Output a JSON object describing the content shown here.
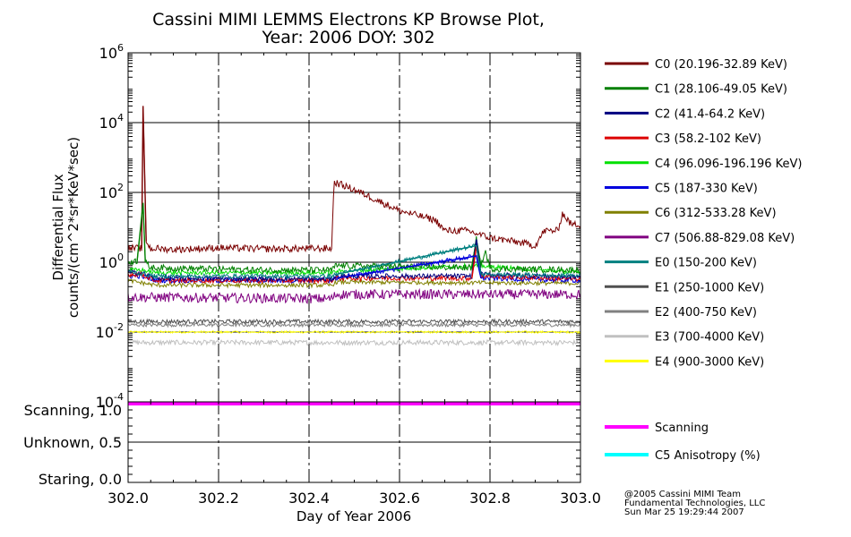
{
  "title_line1": "Cassini MIMI LEMMS Electrons KP Browse Plot,",
  "title_line2": "Year: 2006 DOY: 302",
  "credit": {
    "line1": "@2005 Cassini MIMI Team",
    "line2": "Fundamental Technologies, LLC",
    "line3": "Sun Mar 25 19:29:44 2007"
  },
  "chart_data": [
    {
      "type": "line",
      "panel": "flux",
      "title": "Cassini MIMI LEMMS Electrons KP Browse Plot, Year: 2006 DOY: 302",
      "ylabel_line1": "Differential Flux",
      "ylabel_line2": "counts/(cm^2*sr*KeV*sec)",
      "xlabel": "Day of Year 2006",
      "yscale": "log",
      "ylim": [
        0.0001,
        1000000
      ],
      "xlim": [
        302.0,
        303.0
      ],
      "y_ticks": [
        {
          "base": "10",
          "exp": "6"
        },
        {
          "base": "10",
          "exp": "4"
        },
        {
          "base": "10",
          "exp": "2"
        },
        {
          "base": "10",
          "exp": "0"
        },
        {
          "base": "10",
          "exp": "-2"
        },
        {
          "base": "10",
          "exp": "-4"
        }
      ],
      "x_ticks": [
        "302.0",
        "302.2",
        "302.4",
        "302.6",
        "302.8",
        "303.0"
      ],
      "x_tick_values": [
        302.0,
        302.2,
        302.4,
        302.6,
        302.8,
        303.0
      ],
      "dashed_verticals": [
        302.2,
        302.4,
        302.6,
        302.8
      ],
      "series": [
        {
          "name": "C0 (20.196-32.89 KeV)",
          "color": "#7a0000",
          "points": [
            [
              302.0,
              2.5
            ],
            [
              302.03,
              2.5
            ],
            [
              302.033,
              30000
            ],
            [
              302.04,
              4.0
            ],
            [
              302.05,
              2.4
            ],
            [
              302.06,
              2.5
            ],
            [
              302.1,
              2.3
            ],
            [
              302.2,
              2.6
            ],
            [
              302.3,
              2.4
            ],
            [
              302.45,
              2.5
            ],
            [
              302.455,
              200
            ],
            [
              302.5,
              120
            ],
            [
              302.53,
              80
            ],
            [
              302.6,
              30
            ],
            [
              302.68,
              16
            ],
            [
              302.7,
              8
            ],
            [
              302.75,
              8
            ],
            [
              302.8,
              5
            ],
            [
              302.85,
              4
            ],
            [
              302.9,
              3.0
            ],
            [
              302.92,
              8
            ],
            [
              302.95,
              8
            ],
            [
              302.96,
              25
            ],
            [
              302.98,
              12
            ],
            [
              303.0,
              12
            ]
          ],
          "noise": 0.1
        },
        {
          "name": "C1 (28.106-49.05 KeV)",
          "color": "#008000",
          "points": [
            [
              302.0,
              1.0
            ],
            [
              302.02,
              1.1
            ],
            [
              302.033,
              50
            ],
            [
              302.038,
              1.0
            ],
            [
              302.05,
              0.7
            ],
            [
              302.3,
              0.6
            ],
            [
              302.45,
              0.6
            ],
            [
              302.46,
              0.8
            ],
            [
              302.6,
              0.75
            ],
            [
              302.76,
              0.7
            ],
            [
              302.77,
              4.5
            ],
            [
              302.78,
              0.8
            ],
            [
              302.79,
              2.0
            ],
            [
              302.8,
              0.65
            ],
            [
              303.0,
              0.6
            ]
          ],
          "noise": 0.09
        },
        {
          "name": "C2 (41.4-64.2 KeV)",
          "color": "#000080",
          "points": [
            [
              302.0,
              0.5
            ],
            [
              302.03,
              0.5
            ],
            [
              302.06,
              0.35
            ],
            [
              302.45,
              0.33
            ],
            [
              302.46,
              0.4
            ],
            [
              302.76,
              0.4
            ],
            [
              302.77,
              4.5
            ],
            [
              302.78,
              0.45
            ],
            [
              303.0,
              0.38
            ]
          ],
          "noise": 0.07
        },
        {
          "name": "C3 (58.2-102 KeV)",
          "color": "#dd0000",
          "points": [
            [
              302.0,
              0.45
            ],
            [
              302.03,
              0.45
            ],
            [
              302.06,
              0.3
            ],
            [
              302.45,
              0.3
            ],
            [
              302.46,
              0.35
            ],
            [
              302.76,
              0.35
            ],
            [
              302.77,
              3.0
            ],
            [
              302.78,
              0.4
            ],
            [
              303.0,
              0.33
            ]
          ],
          "noise": 0.07
        },
        {
          "name": "C4 (96.096-196.196 KeV)",
          "color": "#00e000",
          "points": [
            [
              302.0,
              0.6
            ],
            [
              302.03,
              0.6
            ],
            [
              302.06,
              0.5
            ],
            [
              302.45,
              0.5
            ],
            [
              302.46,
              0.55
            ],
            [
              302.77,
              0.8
            ],
            [
              303.0,
              0.5
            ]
          ],
          "noise": 0.06
        },
        {
          "name": "C5 (187-330 KeV)",
          "color": "#0000dd",
          "points": [
            [
              302.0,
              0.4
            ],
            [
              302.03,
              0.4
            ],
            [
              302.06,
              0.3
            ],
            [
              302.45,
              0.3
            ],
            [
              302.46,
              0.35
            ],
            [
              302.77,
              1.5
            ],
            [
              302.78,
              0.35
            ],
            [
              303.0,
              0.3
            ]
          ],
          "noise": 0.07
        },
        {
          "name": "C6 (312-533.28 KeV)",
          "color": "#808000",
          "points": [
            [
              302.0,
              0.3
            ],
            [
              302.06,
              0.22
            ],
            [
              302.45,
              0.22
            ],
            [
              302.46,
              0.27
            ],
            [
              303.0,
              0.25
            ]
          ],
          "noise": 0.06
        },
        {
          "name": "C7 (506.88-829.08 KeV)",
          "color": "#800080",
          "points": [
            [
              302.0,
              0.1
            ],
            [
              302.45,
              0.09
            ],
            [
              302.46,
              0.12
            ],
            [
              303.0,
              0.12
            ]
          ],
          "noise": 0.14
        },
        {
          "name": "E0 (150-200 KeV)",
          "color": "#008080",
          "points": [
            [
              302.0,
              0.55
            ],
            [
              302.06,
              0.4
            ],
            [
              302.45,
              0.4
            ],
            [
              302.46,
              0.45
            ],
            [
              302.77,
              3.0
            ],
            [
              302.78,
              0.45
            ],
            [
              303.0,
              0.42
            ]
          ],
          "noise": 0.06
        },
        {
          "name": "E1 (250-1000 KeV)",
          "color": "#505050",
          "points": [
            [
              302.0,
              0.02
            ],
            [
              303.0,
              0.02
            ]
          ],
          "noise": 0.06
        },
        {
          "name": "E2 (400-750 KeV)",
          "color": "#808080",
          "points": [
            [
              302.0,
              0.016
            ],
            [
              303.0,
              0.016
            ]
          ],
          "noise": 0.05
        },
        {
          "name": "E3 (700-4000 KeV)",
          "color": "#c0c0c0",
          "points": [
            [
              302.0,
              0.005
            ],
            [
              303.0,
              0.005
            ]
          ],
          "noise": 0.07
        },
        {
          "name": "E4 (900-3000 KeV)",
          "color": "#ffff00",
          "points": [
            [
              302.0,
              0.01
            ],
            [
              303.0,
              0.01
            ]
          ],
          "noise": 0.03
        }
      ]
    },
    {
      "type": "line",
      "panel": "mode",
      "ylim": [
        0.0,
        1.0
      ],
      "y_ticks": [
        "Scanning, 1.0",
        "Unknown, 0.5",
        "Staring, 0.0"
      ],
      "y_tick_values": [
        1.0,
        0.5,
        0.0
      ],
      "series": [
        {
          "name": "Scanning",
          "color": "#ff00ff",
          "points": [
            [
              302.0,
              1.0
            ],
            [
              303.0,
              1.0
            ]
          ]
        },
        {
          "name": "C5 Anisotropy (%)",
          "color": "#00ffff",
          "points": []
        }
      ]
    }
  ]
}
